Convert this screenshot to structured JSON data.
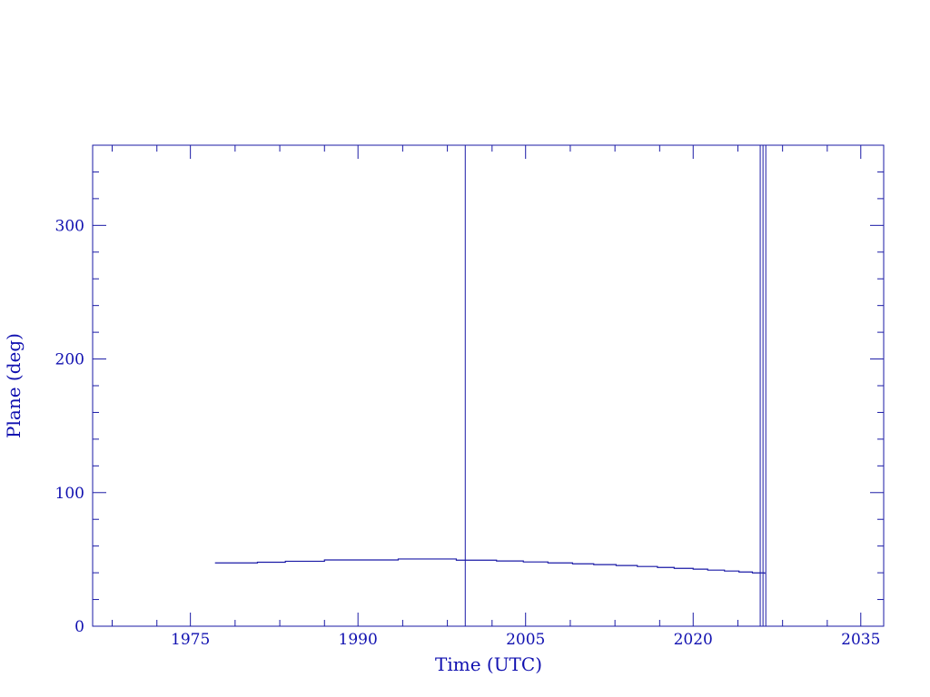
{
  "chart_data": {
    "type": "line",
    "title": "",
    "xlabel": "Time (UTC)",
    "ylabel": "Plane (deg)",
    "xlim": [
      1966.25,
      2037.05
    ],
    "ylim": [
      0,
      360
    ],
    "x_major_ticks": [
      1975,
      1990,
      2005,
      2020,
      2035
    ],
    "x_tick_labels": [
      "1975",
      "1990",
      "2005",
      "2020",
      "2035"
    ],
    "x_minor_ticks": [
      1968,
      1972,
      1979,
      1983,
      1987,
      1994,
      1998,
      2002,
      2009,
      2013,
      2017,
      2024,
      2028,
      2032
    ],
    "y_major_ticks": [
      0,
      100,
      200,
      300
    ],
    "y_tick_labels": [
      "0",
      "100",
      "200",
      "300"
    ],
    "y_minor_step": 20,
    "grid": false,
    "color": "#1a1aa6",
    "series": [
      {
        "style": "step",
        "x": [
          1977.2,
          1981.0,
          1983.5,
          1987.0,
          1993.6,
          1998.8,
          2002.4,
          2004.8,
          2007.0,
          2009.2,
          2011.1,
          2013.1,
          2015.0,
          2016.8,
          2018.3,
          2020.0,
          2021.3,
          2022.8,
          2024.1,
          2025.3,
          2026.4
        ],
        "y": [
          47.4,
          47.9,
          48.6,
          49.6,
          50.3,
          49.4,
          48.8,
          48.1,
          47.4,
          46.7,
          46.1,
          45.4,
          44.7,
          44.0,
          43.3,
          42.7,
          42.0,
          41.3,
          40.6,
          39.9,
          39.2
        ]
      }
    ],
    "vertical_lines": [
      1999.6,
      2026.0,
      2026.25,
      2026.5
    ]
  }
}
